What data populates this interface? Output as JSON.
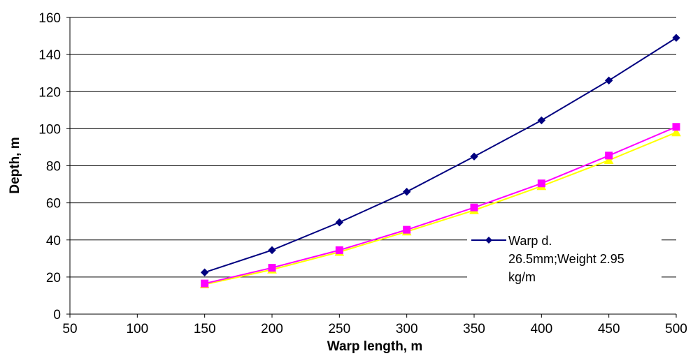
{
  "chart_data": {
    "type": "line",
    "title": "",
    "xlabel": "Warp length, m",
    "ylabel": "Depth, m",
    "xlim": [
      50,
      500
    ],
    "ylim": [
      0,
      160
    ],
    "xticks": [
      50,
      100,
      150,
      200,
      250,
      300,
      350,
      400,
      450,
      500
    ],
    "yticks": [
      0,
      20,
      40,
      60,
      80,
      100,
      120,
      140,
      160
    ],
    "grid": "horizontal",
    "legend_position": "right",
    "x": [
      150,
      200,
      250,
      300,
      350,
      400,
      450,
      500
    ],
    "series": [
      {
        "name": "Warp d. 26.5mm;Weight 2.95 kg/m",
        "legend_lines": [
          "Warp d.",
          "26.5mm;Weight 2.95",
          "kg/m"
        ],
        "color": "#000080",
        "marker": "diamond",
        "values": [
          22.5,
          34.5,
          49.5,
          66,
          85,
          104.5,
          126,
          149
        ]
      },
      {
        "color": "#ff00ff",
        "marker": "square",
        "values": [
          16.5,
          25,
          34.5,
          45.5,
          57.5,
          70.5,
          85.5,
          101
        ]
      },
      {
        "color": "#ffff00",
        "marker": "triangle",
        "values": [
          16,
          24,
          33.5,
          44.5,
          56,
          69,
          83,
          98
        ]
      }
    ]
  }
}
